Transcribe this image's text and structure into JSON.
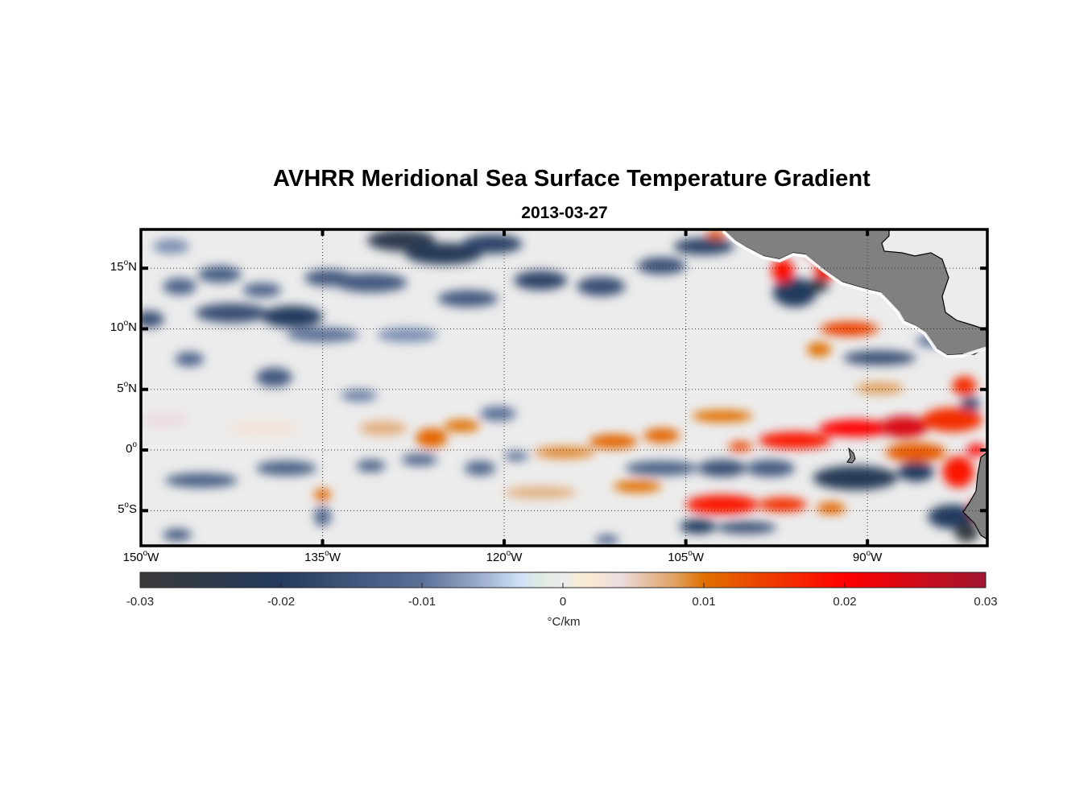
{
  "title": "AVHRR Meridional Sea Surface Temperature Gradient",
  "subtitle": "2013-03-27",
  "chart_data": {
    "type": "heatmap",
    "title": "AVHRR Meridional Sea Surface Temperature Gradient",
    "subtitle": "2013-03-27",
    "xlim": [
      -150,
      -80.1
    ],
    "ylim": [
      -7.9,
      18.2
    ],
    "grid": "dotted",
    "x_ticks": [
      {
        "value": -150,
        "num": "150",
        "sup": "o",
        "hem": "W"
      },
      {
        "value": -135,
        "num": "135",
        "sup": "o",
        "hem": "W"
      },
      {
        "value": -120,
        "num": "120",
        "sup": "o",
        "hem": "W"
      },
      {
        "value": -105,
        "num": "105",
        "sup": "o",
        "hem": "W"
      },
      {
        "value": -90,
        "num": "90",
        "sup": "o",
        "hem": "W"
      }
    ],
    "y_ticks": [
      {
        "value": 15,
        "num": "15",
        "sup": "o",
        "hem": "N"
      },
      {
        "value": 10,
        "num": "10",
        "sup": "o",
        "hem": "N"
      },
      {
        "value": 5,
        "num": "5",
        "sup": "o",
        "hem": "N"
      },
      {
        "value": 0,
        "num": "0",
        "sup": "o",
        "hem": ""
      },
      {
        "value": -5,
        "num": "5",
        "sup": "o",
        "hem": "S"
      }
    ],
    "colorbar": {
      "range": [
        -0.03,
        0.03
      ],
      "ticks": [
        "-0.03",
        "-0.02",
        "-0.01",
        "0",
        "0.01",
        "0.02",
        "0.03"
      ],
      "tick_values": [
        -0.03,
        -0.02,
        -0.01,
        0,
        0.01,
        0.02,
        0.03
      ],
      "label": "°C/km",
      "stops": [
        {
          "v": -0.03,
          "color": "#3a3a3a"
        },
        {
          "v": -0.02,
          "color": "#243a5e"
        },
        {
          "v": -0.01,
          "color": "#5a7096"
        },
        {
          "v": -0.006,
          "color": "#9aaccc"
        },
        {
          "v": -0.003,
          "color": "#cfe0f8"
        },
        {
          "v": -0.0015,
          "color": "#e0ecdf"
        },
        {
          "v": 0,
          "color": "#ececec"
        },
        {
          "v": 0.0015,
          "color": "#fbecd0"
        },
        {
          "v": 0.004,
          "color": "#ecdde0"
        },
        {
          "v": 0.008,
          "color": "#e0a060"
        },
        {
          "v": 0.01,
          "color": "#e07000"
        },
        {
          "v": 0.02,
          "color": "#ff0000"
        },
        {
          "v": 0.03,
          "color": "#a01530"
        }
      ]
    },
    "background_value": 0,
    "land_color": "#808080",
    "features": [
      {
        "lon": -147.5,
        "lat": 16.8,
        "rx": 1.5,
        "ry": 0.6,
        "v": -0.008
      },
      {
        "lon": -143.5,
        "lat": 14.5,
        "rx": 1.8,
        "ry": 0.7,
        "v": -0.013
      },
      {
        "lon": -140,
        "lat": 13.2,
        "rx": 1.6,
        "ry": 0.6,
        "v": -0.012
      },
      {
        "lon": -146.8,
        "lat": 13.5,
        "rx": 1.4,
        "ry": 0.7,
        "v": -0.012
      },
      {
        "lon": -149.3,
        "lat": 10.8,
        "rx": 1.2,
        "ry": 0.7,
        "v": -0.016
      },
      {
        "lon": -142.5,
        "lat": 11.3,
        "rx": 3.0,
        "ry": 0.8,
        "v": -0.016
      },
      {
        "lon": -137.5,
        "lat": 11.0,
        "rx": 2.5,
        "ry": 0.9,
        "v": -0.02
      },
      {
        "lon": -134.5,
        "lat": 14.2,
        "rx": 2.0,
        "ry": 0.7,
        "v": -0.014
      },
      {
        "lon": -131,
        "lat": 13.8,
        "rx": 3.0,
        "ry": 0.8,
        "v": -0.014
      },
      {
        "lon": -128.5,
        "lat": 17.3,
        "rx": 2.8,
        "ry": 0.9,
        "v": -0.024
      },
      {
        "lon": -125,
        "lat": 16.2,
        "rx": 3.2,
        "ry": 0.9,
        "v": -0.022
      },
      {
        "lon": -121,
        "lat": 17.0,
        "rx": 2.5,
        "ry": 0.8,
        "v": -0.018
      },
      {
        "lon": -123,
        "lat": 12.5,
        "rx": 2.5,
        "ry": 0.7,
        "v": -0.014
      },
      {
        "lon": -117,
        "lat": 14.0,
        "rx": 2.2,
        "ry": 0.8,
        "v": -0.018
      },
      {
        "lon": -112,
        "lat": 13.5,
        "rx": 2.0,
        "ry": 0.8,
        "v": -0.016
      },
      {
        "lon": -107,
        "lat": 15.2,
        "rx": 2.0,
        "ry": 0.7,
        "v": -0.016
      },
      {
        "lon": -103.5,
        "lat": 16.8,
        "rx": 2.5,
        "ry": 0.7,
        "v": -0.018
      },
      {
        "lon": -135,
        "lat": 9.5,
        "rx": 3.0,
        "ry": 0.6,
        "v": -0.01
      },
      {
        "lon": -146,
        "lat": 7.5,
        "rx": 1.2,
        "ry": 0.6,
        "v": -0.012
      },
      {
        "lon": -139,
        "lat": 6.0,
        "rx": 1.5,
        "ry": 0.8,
        "v": -0.014
      },
      {
        "lon": -128,
        "lat": 9.5,
        "rx": 2.5,
        "ry": 0.6,
        "v": -0.008
      },
      {
        "lon": -96,
        "lat": 13.0,
        "rx": 1.8,
        "ry": 1.2,
        "v": -0.02
      },
      {
        "lon": -94,
        "lat": 13.6,
        "rx": 0.8,
        "ry": 0.6,
        "v": -0.027
      },
      {
        "lon": -97,
        "lat": 14.8,
        "rx": 0.9,
        "ry": 1.0,
        "v": 0.019
      },
      {
        "lon": -93.5,
        "lat": 14.8,
        "rx": 0.9,
        "ry": 0.7,
        "v": 0.018
      },
      {
        "lon": -94.5,
        "lat": 16.3,
        "rx": 0.6,
        "ry": 0.4,
        "v": 0.02
      },
      {
        "lon": -91.5,
        "lat": 10.0,
        "rx": 2.4,
        "ry": 0.6,
        "v": 0.014
      },
      {
        "lon": -94,
        "lat": 8.3,
        "rx": 1.0,
        "ry": 0.6,
        "v": 0.01
      },
      {
        "lon": -89,
        "lat": 7.6,
        "rx": 3.0,
        "ry": 0.6,
        "v": -0.016
      },
      {
        "lon": -84.5,
        "lat": 9.0,
        "rx": 1.5,
        "ry": 0.5,
        "v": -0.01
      },
      {
        "lon": -102.5,
        "lat": 17.8,
        "rx": 0.8,
        "ry": 0.4,
        "v": 0.012
      },
      {
        "lon": -82,
        "lat": 5.3,
        "rx": 1.0,
        "ry": 0.8,
        "v": 0.016
      },
      {
        "lon": -81.5,
        "lat": 3.8,
        "rx": 0.8,
        "ry": 0.6,
        "v": -0.016
      },
      {
        "lon": -89,
        "lat": 5.1,
        "rx": 2.0,
        "ry": 0.5,
        "v": 0.008
      },
      {
        "lon": -120.5,
        "lat": 3.0,
        "rx": 1.5,
        "ry": 0.6,
        "v": -0.01
      },
      {
        "lon": -132,
        "lat": 4.5,
        "rx": 1.5,
        "ry": 0.5,
        "v": -0.009
      },
      {
        "lon": -148,
        "lat": 2.5,
        "rx": 2.0,
        "ry": 0.7,
        "v": 0.004
      },
      {
        "lon": -140,
        "lat": 1.8,
        "rx": 3.0,
        "ry": 0.7,
        "v": 0.003
      },
      {
        "lon": -130,
        "lat": 1.8,
        "rx": 2.0,
        "ry": 0.6,
        "v": 0.007
      },
      {
        "lon": -126,
        "lat": 1.0,
        "rx": 1.3,
        "ry": 0.8,
        "v": 0.011
      },
      {
        "lon": -123.5,
        "lat": 2.0,
        "rx": 1.5,
        "ry": 0.5,
        "v": 0.01
      },
      {
        "lon": -115,
        "lat": -0.2,
        "rx": 2.5,
        "ry": 0.5,
        "v": 0.009
      },
      {
        "lon": -111,
        "lat": 0.7,
        "rx": 2.0,
        "ry": 0.6,
        "v": 0.011
      },
      {
        "lon": -107,
        "lat": 1.2,
        "rx": 1.5,
        "ry": 0.6,
        "v": 0.011
      },
      {
        "lon": -102,
        "lat": 2.8,
        "rx": 2.5,
        "ry": 0.5,
        "v": 0.01
      },
      {
        "lon": -96,
        "lat": 0.8,
        "rx": 3.0,
        "ry": 0.7,
        "v": 0.018
      },
      {
        "lon": -91,
        "lat": 1.8,
        "rx": 3.0,
        "ry": 0.7,
        "v": 0.02
      },
      {
        "lon": -87,
        "lat": 1.9,
        "rx": 2.0,
        "ry": 0.9,
        "v": 0.024
      },
      {
        "lon": -83,
        "lat": 2.5,
        "rx": 2.5,
        "ry": 1.0,
        "v": 0.016
      },
      {
        "lon": -100.5,
        "lat": 0.3,
        "rx": 1.0,
        "ry": 0.4,
        "v": 0.014
      },
      {
        "lon": -86,
        "lat": -0.2,
        "rx": 2.5,
        "ry": 0.8,
        "v": 0.012
      },
      {
        "lon": -82.5,
        "lat": -1.8,
        "rx": 1.3,
        "ry": 1.3,
        "v": 0.018
      },
      {
        "lon": -81,
        "lat": 0.0,
        "rx": 0.8,
        "ry": 0.5,
        "v": 0.02
      },
      {
        "lon": -145,
        "lat": -2.5,
        "rx": 3.0,
        "ry": 0.6,
        "v": -0.013
      },
      {
        "lon": -138,
        "lat": -1.5,
        "rx": 2.5,
        "ry": 0.6,
        "v": -0.013
      },
      {
        "lon": -131,
        "lat": -1.3,
        "rx": 1.2,
        "ry": 0.5,
        "v": -0.013
      },
      {
        "lon": -127,
        "lat": -0.8,
        "rx": 1.5,
        "ry": 0.5,
        "v": -0.012
      },
      {
        "lon": -122,
        "lat": -1.5,
        "rx": 1.3,
        "ry": 0.6,
        "v": -0.012
      },
      {
        "lon": -119,
        "lat": -0.5,
        "rx": 1.0,
        "ry": 0.4,
        "v": -0.01
      },
      {
        "lon": -107,
        "lat": -1.5,
        "rx": 3.0,
        "ry": 0.6,
        "v": -0.013
      },
      {
        "lon": -102,
        "lat": -1.5,
        "rx": 2.0,
        "ry": 0.7,
        "v": -0.016
      },
      {
        "lon": -98,
        "lat": -1.5,
        "rx": 2.0,
        "ry": 0.7,
        "v": -0.014
      },
      {
        "lon": -91,
        "lat": -2.3,
        "rx": 3.5,
        "ry": 1.0,
        "v": -0.022
      },
      {
        "lon": -86,
        "lat": -1.8,
        "rx": 1.5,
        "ry": 0.8,
        "v": -0.02
      },
      {
        "lon": -135,
        "lat": -3.7,
        "rx": 0.7,
        "ry": 0.5,
        "v": 0.011
      },
      {
        "lon": -117,
        "lat": -3.5,
        "rx": 3.0,
        "ry": 0.5,
        "v": 0.007
      },
      {
        "lon": -109,
        "lat": -3.0,
        "rx": 2.0,
        "ry": 0.5,
        "v": 0.01
      },
      {
        "lon": -102,
        "lat": -4.5,
        "rx": 3.0,
        "ry": 0.8,
        "v": 0.018
      },
      {
        "lon": -97,
        "lat": -4.5,
        "rx": 2.0,
        "ry": 0.6,
        "v": 0.016
      },
      {
        "lon": -93,
        "lat": -4.8,
        "rx": 1.2,
        "ry": 0.5,
        "v": 0.011
      },
      {
        "lon": -104,
        "lat": -6.3,
        "rx": 1.5,
        "ry": 0.6,
        "v": -0.02
      },
      {
        "lon": -100,
        "lat": -6.4,
        "rx": 2.5,
        "ry": 0.5,
        "v": -0.016
      },
      {
        "lon": -83,
        "lat": -5.5,
        "rx": 2.0,
        "ry": 1.0,
        "v": -0.02
      },
      {
        "lon": -81.8,
        "lat": -6.8,
        "rx": 1.0,
        "ry": 0.8,
        "v": -0.028
      },
      {
        "lon": -81,
        "lat": -4.9,
        "rx": 0.6,
        "ry": 0.8,
        "v": 0.026
      },
      {
        "lon": -147,
        "lat": -7.0,
        "rx": 1.2,
        "ry": 0.5,
        "v": -0.014
      },
      {
        "lon": -135,
        "lat": -5.5,
        "rx": 0.7,
        "ry": 0.8,
        "v": -0.012
      },
      {
        "lon": -111.5,
        "lat": -7.4,
        "rx": 1.0,
        "ry": 0.4,
        "v": -0.012
      }
    ]
  }
}
